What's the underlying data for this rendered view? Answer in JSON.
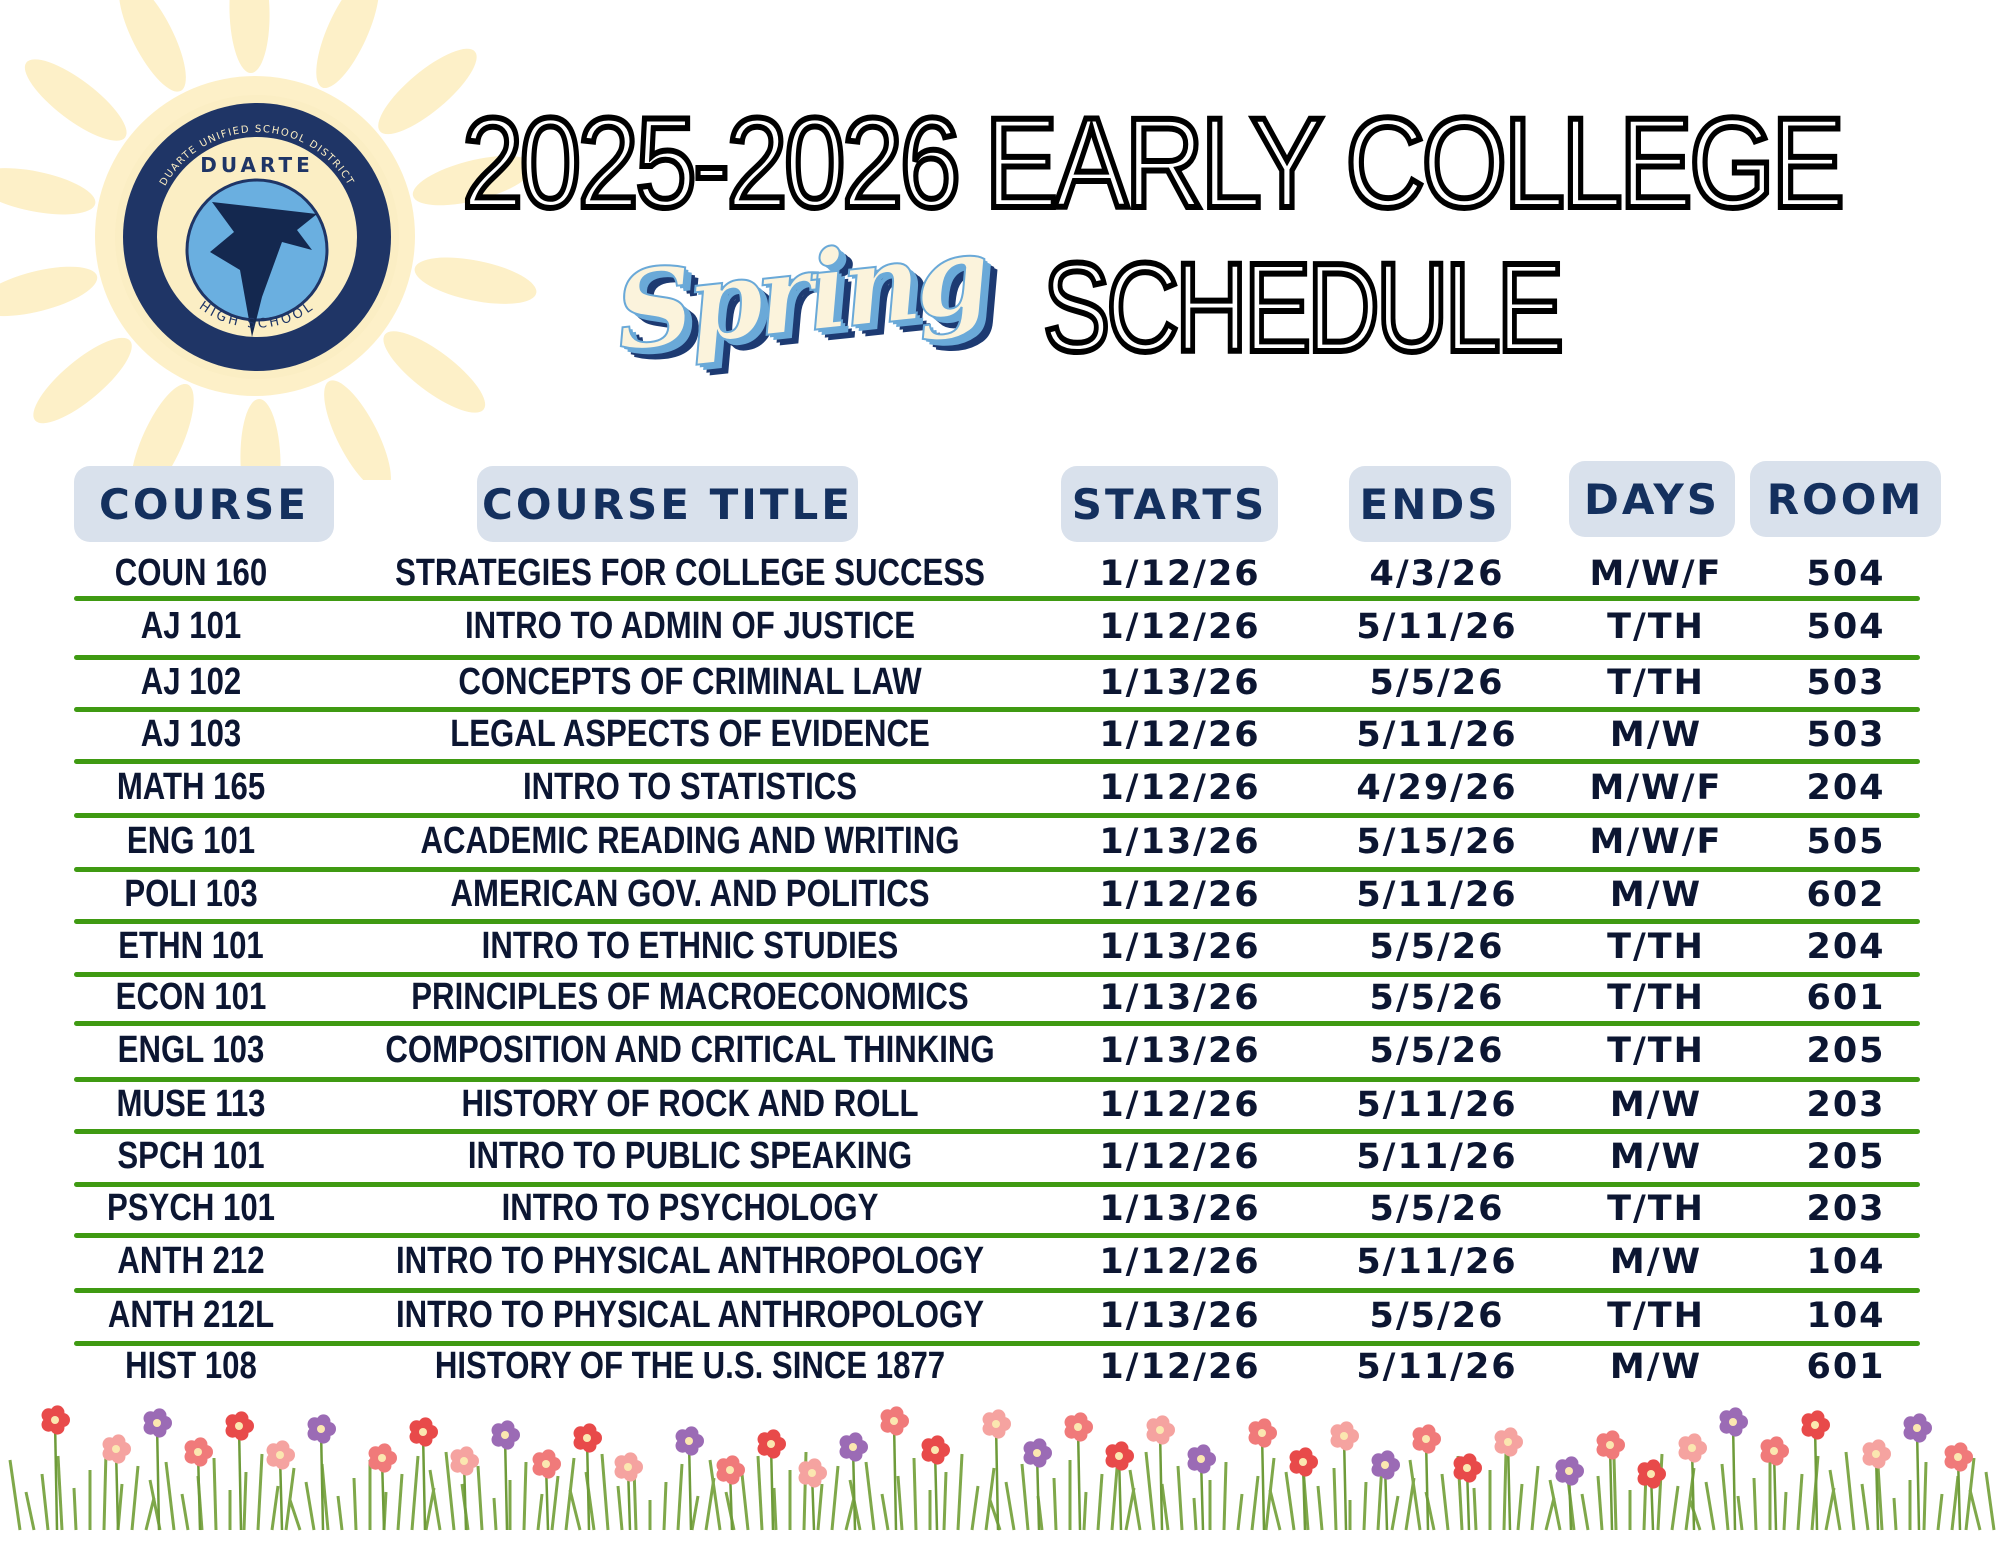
{
  "header": {
    "title_line1": "2025-2026 EARLY COLLEGE",
    "script_word": "Spring",
    "title_line2": "SCHEDULE"
  },
  "logo": {
    "top_text": "DUARTE UNIFIED SCHOOL DISTRICT",
    "name": "DUARTE",
    "bottom_text": "HIGH SCHOOL",
    "colors": {
      "navy": "#1f3566",
      "cream": "#fbeec4",
      "sky": "#6aafe0"
    }
  },
  "table": {
    "columns": [
      "COURSE",
      "COURSE TITLE",
      "STARTS",
      "ENDS",
      "DAYS",
      "ROOM"
    ],
    "rows": [
      [
        "COUN 160",
        "STRATEGIES FOR COLLEGE SUCCESS",
        "1/12/26",
        "4/3/26",
        "M/W/F",
        "504"
      ],
      [
        "AJ 101",
        "INTRO TO ADMIN OF JUSTICE",
        "1/12/26",
        "5/11/26",
        "T/TH",
        "504"
      ],
      [
        "AJ 102",
        "CONCEPTS OF CRIMINAL LAW",
        "1/13/26",
        "5/5/26",
        "T/TH",
        "503"
      ],
      [
        "AJ 103",
        "LEGAL ASPECTS OF EVIDENCE",
        "1/12/26",
        "5/11/26",
        "M/W",
        "503"
      ],
      [
        "MATH 165",
        "INTRO TO STATISTICS",
        "1/12/26",
        "4/29/26",
        "M/W/F",
        "204"
      ],
      [
        "ENG 101",
        "ACADEMIC READING AND WRITING",
        "1/13/26",
        "5/15/26",
        "M/W/F",
        "505"
      ],
      [
        "POLI 103",
        "AMERICAN GOV. AND POLITICS",
        "1/12/26",
        "5/11/26",
        "M/W",
        "602"
      ],
      [
        "ETHN 101",
        "INTRO TO ETHNIC STUDIES",
        "1/13/26",
        "5/5/26",
        "T/TH",
        "204"
      ],
      [
        "ECON 101",
        "PRINCIPLES OF MACROECONOMICS",
        "1/13/26",
        "5/5/26",
        "T/TH",
        "601"
      ],
      [
        "ENGL 103",
        "COMPOSITION AND CRITICAL THINKING",
        "1/13/26",
        "5/5/26",
        "T/TH",
        "205"
      ],
      [
        "MUSE 113",
        "HISTORY OF ROCK AND ROLL",
        "1/12/26",
        "5/11/26",
        "M/W",
        "203"
      ],
      [
        "SPCH 101",
        "INTRO TO PUBLIC SPEAKING",
        "1/12/26",
        "5/11/26",
        "M/W",
        "205"
      ],
      [
        "PSYCH 101",
        "INTRO TO PSYCHOLOGY",
        "1/13/26",
        "5/5/26",
        "T/TH",
        "203"
      ],
      [
        "ANTH 212",
        "INTRO TO PHYSICAL ANTHROPOLOGY",
        "1/12/26",
        "5/11/26",
        "M/W",
        "104"
      ],
      [
        "ANTH 212L",
        "INTRO TO PHYSICAL ANTHROPOLOGY",
        "1/13/26",
        "5/5/26",
        "T/TH",
        "104"
      ],
      [
        "HIST 108",
        "HISTORY OF THE U.S. SINCE 1877",
        "1/12/26",
        "5/11/26",
        "M/W",
        "601"
      ]
    ],
    "colors": {
      "header_bg": "#d9e1ec",
      "header_text": "#14305e",
      "rule": "#3f9a12",
      "text": "#0c1632"
    }
  },
  "decor": {
    "sun_color": "#fdf0c8",
    "flower_colors": [
      "#e84a4a",
      "#f5a3a0",
      "#9b6bb5",
      "#f07a7a",
      "#6e9b3a"
    ]
  }
}
